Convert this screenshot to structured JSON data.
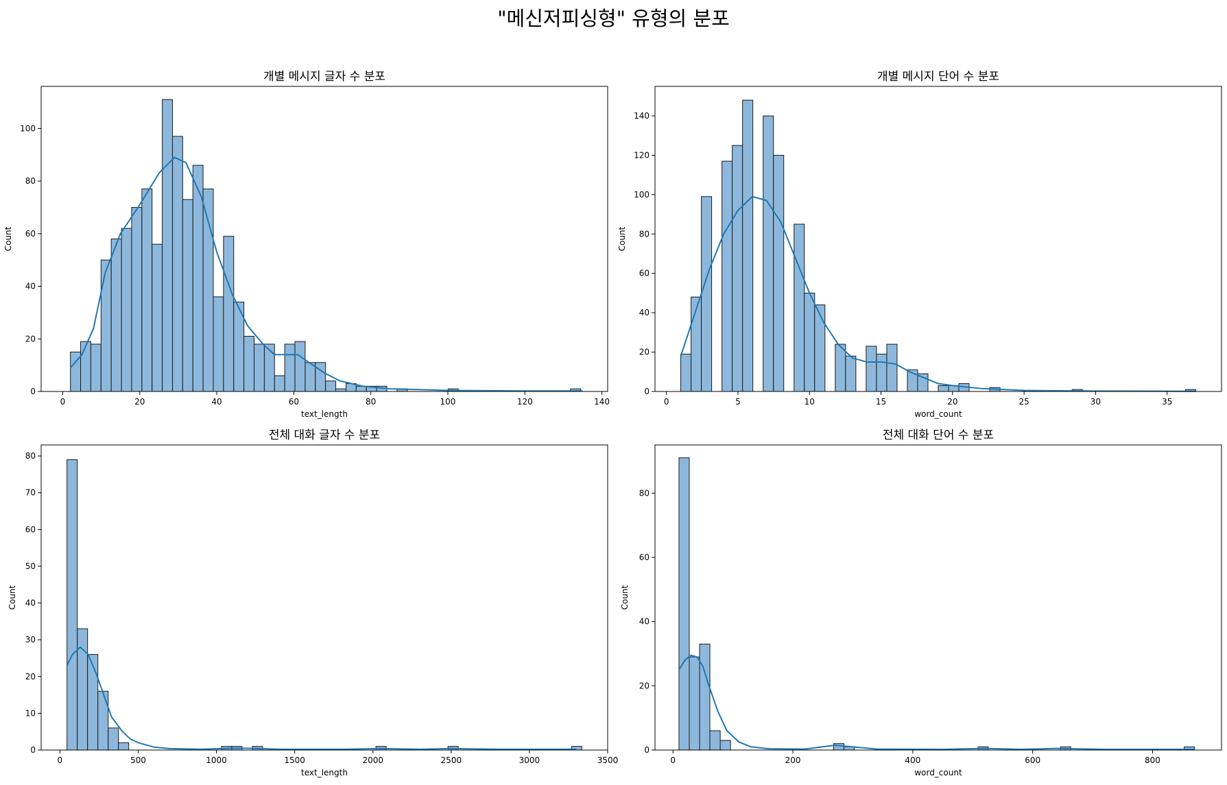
{
  "suptitle": "\"메신저피싱형\" 유형의 분포",
  "colors": {
    "bar_fill": "#8db8dc",
    "bar_edge": "#1a1a1a",
    "kde": "#1f77b4"
  },
  "chart_data": [
    {
      "type": "bar",
      "title": "개별 메시지 글자 수 분포",
      "xlabel": "text_length",
      "ylabel": "Count",
      "xlim": [
        -5.6,
        141.5
      ],
      "ylim": [
        0,
        116
      ],
      "xticks": [
        0,
        20,
        40,
        60,
        80,
        100,
        120,
        140
      ],
      "yticks": [
        0,
        20,
        40,
        60,
        80,
        100
      ],
      "bin_width": 2.65,
      "bins": [
        {
          "x": 2,
          "count": 15
        },
        {
          "x": 4.65,
          "count": 19
        },
        {
          "x": 7.3,
          "count": 18
        },
        {
          "x": 9.95,
          "count": 50
        },
        {
          "x": 12.6,
          "count": 58
        },
        {
          "x": 15.25,
          "count": 62
        },
        {
          "x": 17.9,
          "count": 70
        },
        {
          "x": 20.55,
          "count": 77
        },
        {
          "x": 23.2,
          "count": 56
        },
        {
          "x": 25.85,
          "count": 111
        },
        {
          "x": 28.5,
          "count": 97
        },
        {
          "x": 31.15,
          "count": 73
        },
        {
          "x": 33.8,
          "count": 86
        },
        {
          "x": 36.45,
          "count": 77
        },
        {
          "x": 39.1,
          "count": 36
        },
        {
          "x": 41.75,
          "count": 59
        },
        {
          "x": 44.4,
          "count": 34
        },
        {
          "x": 47.05,
          "count": 21
        },
        {
          "x": 49.7,
          "count": 18
        },
        {
          "x": 52.35,
          "count": 18
        },
        {
          "x": 55,
          "count": 6
        },
        {
          "x": 57.65,
          "count": 18
        },
        {
          "x": 60.3,
          "count": 19
        },
        {
          "x": 62.95,
          "count": 11
        },
        {
          "x": 65.6,
          "count": 11
        },
        {
          "x": 68.25,
          "count": 4
        },
        {
          "x": 70.9,
          "count": 1
        },
        {
          "x": 73.55,
          "count": 3
        },
        {
          "x": 76.2,
          "count": 2
        },
        {
          "x": 78.85,
          "count": 2
        },
        {
          "x": 81.5,
          "count": 2
        },
        {
          "x": 86.8,
          "count": 1
        },
        {
          "x": 100.05,
          "count": 1
        },
        {
          "x": 131.85,
          "count": 1
        }
      ],
      "kde": [
        [
          2,
          9
        ],
        [
          5,
          14
        ],
        [
          8,
          24
        ],
        [
          11,
          45
        ],
        [
          15,
          60
        ],
        [
          20,
          71
        ],
        [
          25,
          83
        ],
        [
          29,
          89
        ],
        [
          32,
          87
        ],
        [
          36,
          74
        ],
        [
          40,
          53
        ],
        [
          44,
          37
        ],
        [
          48,
          25
        ],
        [
          52,
          18
        ],
        [
          55,
          14
        ],
        [
          58,
          14
        ],
        [
          61,
          14
        ],
        [
          64,
          11
        ],
        [
          68,
          7
        ],
        [
          72,
          4
        ],
        [
          78,
          2
        ],
        [
          85,
          1
        ],
        [
          100,
          0.4
        ],
        [
          120,
          0.2
        ],
        [
          135,
          0.2
        ]
      ]
    },
    {
      "type": "bar",
      "title": "개별 메시지 단어 수 분포",
      "xlabel": "word_count",
      "ylabel": "Count",
      "xlim": [
        -0.8,
        38.8
      ],
      "ylim": [
        0,
        155
      ],
      "xticks": [
        0,
        5,
        10,
        15,
        20,
        25,
        30,
        35
      ],
      "yticks": [
        0,
        20,
        40,
        60,
        80,
        100,
        120,
        140
      ],
      "bin_width": 0.72,
      "bins": [
        {
          "x": 1,
          "count": 19
        },
        {
          "x": 1.72,
          "count": 48
        },
        {
          "x": 2.44,
          "count": 99
        },
        {
          "x": 3.88,
          "count": 117
        },
        {
          "x": 4.6,
          "count": 125
        },
        {
          "x": 5.32,
          "count": 148
        },
        {
          "x": 6.76,
          "count": 140
        },
        {
          "x": 7.48,
          "count": 120
        },
        {
          "x": 8.92,
          "count": 85
        },
        {
          "x": 9.64,
          "count": 50
        },
        {
          "x": 10.36,
          "count": 44
        },
        {
          "x": 11.8,
          "count": 24
        },
        {
          "x": 12.52,
          "count": 18
        },
        {
          "x": 13.96,
          "count": 23
        },
        {
          "x": 14.68,
          "count": 19
        },
        {
          "x": 15.4,
          "count": 24
        },
        {
          "x": 16.84,
          "count": 11
        },
        {
          "x": 17.56,
          "count": 9
        },
        {
          "x": 19,
          "count": 3
        },
        {
          "x": 19.72,
          "count": 3
        },
        {
          "x": 20.44,
          "count": 4
        },
        {
          "x": 22.6,
          "count": 2
        },
        {
          "x": 28.36,
          "count": 1
        },
        {
          "x": 36.28,
          "count": 1
        }
      ],
      "kde": [
        [
          1,
          18
        ],
        [
          2,
          40
        ],
        [
          3,
          62
        ],
        [
          4,
          80
        ],
        [
          5,
          92
        ],
        [
          6,
          99
        ],
        [
          7,
          97
        ],
        [
          8,
          86
        ],
        [
          9,
          68
        ],
        [
          10,
          50
        ],
        [
          11,
          35
        ],
        [
          12,
          24
        ],
        [
          13,
          17
        ],
        [
          14,
          15
        ],
        [
          15,
          15
        ],
        [
          16,
          14
        ],
        [
          17,
          10
        ],
        [
          18,
          7
        ],
        [
          19,
          4
        ],
        [
          20,
          3
        ],
        [
          22,
          1.5
        ],
        [
          25,
          0.5
        ],
        [
          30,
          0.2
        ],
        [
          37,
          0.1
        ]
      ]
    },
    {
      "type": "bar",
      "title": "전체 대화 글자 수 분포",
      "xlabel": "text_length",
      "ylabel": "Count",
      "xlim": [
        -120,
        3500
      ],
      "ylim": [
        0,
        83
      ],
      "xticks": [
        0,
        500,
        1000,
        1500,
        2000,
        2500,
        3000,
        3500
      ],
      "yticks": [
        0,
        10,
        20,
        30,
        40,
        50,
        60,
        70,
        80
      ],
      "bin_width": 65.8,
      "bins": [
        {
          "x": 45,
          "count": 79
        },
        {
          "x": 110.8,
          "count": 33
        },
        {
          "x": 176.6,
          "count": 26
        },
        {
          "x": 242.4,
          "count": 16
        },
        {
          "x": 308.2,
          "count": 6
        },
        {
          "x": 374,
          "count": 2
        },
        {
          "x": 1032,
          "count": 1
        },
        {
          "x": 1097.8,
          "count": 1
        },
        {
          "x": 1229.4,
          "count": 1
        },
        {
          "x": 2018.998,
          "count": 1
        },
        {
          "x": 2479.6,
          "count": 1
        },
        {
          "x": 3269.2,
          "count": 1
        }
      ],
      "kde": [
        [
          45,
          23
        ],
        [
          80,
          26
        ],
        [
          130,
          28
        ],
        [
          180,
          26
        ],
        [
          230,
          21
        ],
        [
          280,
          15
        ],
        [
          330,
          9
        ],
        [
          400,
          5
        ],
        [
          450,
          3
        ],
        [
          500,
          2
        ],
        [
          600,
          0.8
        ],
        [
          700,
          0.4
        ],
        [
          900,
          0.2
        ],
        [
          1100,
          0.5
        ],
        [
          1200,
          0.5
        ],
        [
          1400,
          0.2
        ],
        [
          1800,
          0.2
        ],
        [
          2050,
          0.4
        ],
        [
          2300,
          0.2
        ],
        [
          2500,
          0.4
        ],
        [
          2800,
          0.2
        ],
        [
          3300,
          0.2
        ]
      ]
    },
    {
      "type": "bar",
      "title": "전체 대화 단어 수 분포",
      "xlabel": "word_count",
      "ylabel": "Count",
      "xlim": [
        -30,
        915
      ],
      "ylim": [
        0,
        95
      ],
      "xticks": [
        0,
        200,
        400,
        600,
        800
      ],
      "yticks": [
        0,
        20,
        40,
        60,
        80
      ],
      "bin_width": 17.2,
      "bins": [
        {
          "x": 10,
          "count": 91
        },
        {
          "x": 27.2,
          "count": 29
        },
        {
          "x": 44.4,
          "count": 33
        },
        {
          "x": 61.6,
          "count": 6
        },
        {
          "x": 78.8,
          "count": 3
        },
        {
          "x": 268,
          "count": 2
        },
        {
          "x": 285.2,
          "count": 1
        },
        {
          "x": 508.8,
          "count": 1
        },
        {
          "x": 646.4,
          "count": 1
        },
        {
          "x": 852.8,
          "count": 1
        }
      ],
      "kde": [
        [
          10,
          25
        ],
        [
          20,
          28
        ],
        [
          30,
          29.5
        ],
        [
          40,
          29
        ],
        [
          50,
          26
        ],
        [
          60,
          20
        ],
        [
          75,
          12
        ],
        [
          90,
          6
        ],
        [
          110,
          2.5
        ],
        [
          130,
          1
        ],
        [
          160,
          0.4
        ],
        [
          220,
          0.3
        ],
        [
          270,
          1.5
        ],
        [
          300,
          1
        ],
        [
          340,
          0.3
        ],
        [
          450,
          0.2
        ],
        [
          520,
          0.5
        ],
        [
          580,
          0.2
        ],
        [
          640,
          0.5
        ],
        [
          720,
          0.2
        ],
        [
          870,
          0.2
        ]
      ]
    }
  ]
}
